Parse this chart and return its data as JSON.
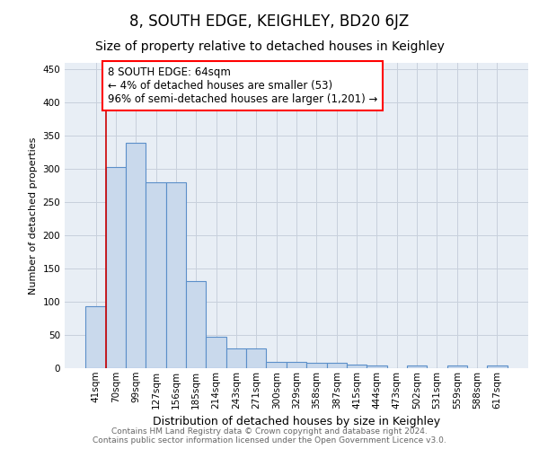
{
  "title": "8, SOUTH EDGE, KEIGHLEY, BD20 6JZ",
  "subtitle": "Size of property relative to detached houses in Keighley",
  "xlabel": "Distribution of detached houses by size in Keighley",
  "ylabel": "Number of detached properties",
  "categories": [
    "41sqm",
    "70sqm",
    "99sqm",
    "127sqm",
    "156sqm",
    "185sqm",
    "214sqm",
    "243sqm",
    "271sqm",
    "300sqm",
    "329sqm",
    "358sqm",
    "387sqm",
    "415sqm",
    "444sqm",
    "473sqm",
    "502sqm",
    "531sqm",
    "559sqm",
    "588sqm",
    "617sqm"
  ],
  "values": [
    93,
    303,
    340,
    280,
    280,
    131,
    47,
    30,
    30,
    10,
    10,
    8,
    8,
    5,
    4,
    0,
    4,
    0,
    4,
    0,
    4
  ],
  "bar_color": "#c9d9ec",
  "bar_edge_color": "#5b8fc9",
  "annotation_text": "8 SOUTH EDGE: 64sqm\n← 4% of detached houses are smaller (53)\n96% of semi-detached houses are larger (1,201) →",
  "vline_color": "#cc0000",
  "ylim": [
    0,
    460
  ],
  "yticks": [
    0,
    50,
    100,
    150,
    200,
    250,
    300,
    350,
    400,
    450
  ],
  "background_color": "#ffffff",
  "axes_bg_color": "#e8eef5",
  "grid_color": "#c8d0dc",
  "footer_text": "Contains HM Land Registry data © Crown copyright and database right 2024.\nContains public sector information licensed under the Open Government Licence v3.0.",
  "title_fontsize": 12,
  "subtitle_fontsize": 10,
  "xlabel_fontsize": 9,
  "ylabel_fontsize": 8,
  "tick_fontsize": 7.5,
  "annotation_fontsize": 8.5,
  "footer_fontsize": 6.5
}
